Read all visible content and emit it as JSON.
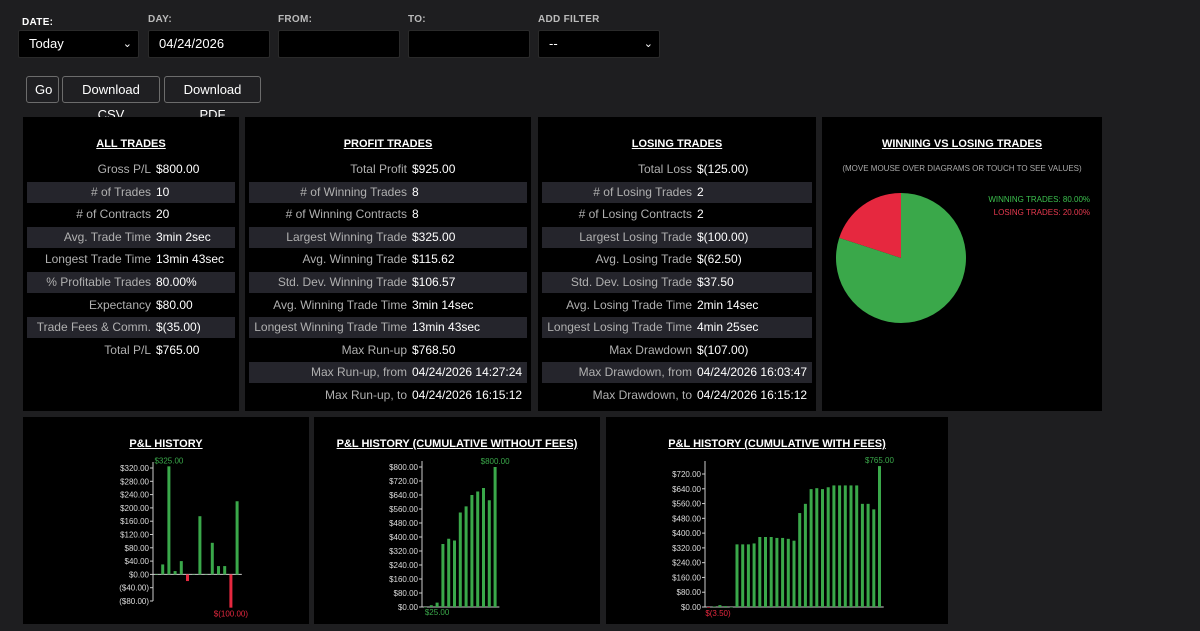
{
  "filters": {
    "date_label": "DATE:",
    "date_value": "Today",
    "day_label": "DAY:",
    "day_value": "04/24/2026",
    "from_label": "FROM:",
    "from_value": "",
    "to_label": "TO:",
    "to_value": "",
    "addfilter_label": "ADD FILTER",
    "addfilter_value": "--"
  },
  "buttons": {
    "go": "Go",
    "csv": "Download CSV",
    "pdf": "Download PDF"
  },
  "all_trades": {
    "title": "ALL TRADES",
    "rows": [
      {
        "label": "Gross P/L",
        "value": "$800.00"
      },
      {
        "label": "# of Trades",
        "value": "10"
      },
      {
        "label": "# of Contracts",
        "value": "20"
      },
      {
        "label": "Avg. Trade Time",
        "value": "3min 2sec"
      },
      {
        "label": "Longest Trade Time",
        "value": "13min 43sec"
      },
      {
        "label": "% Profitable Trades",
        "value": "80.00%"
      },
      {
        "label": "Expectancy",
        "value": "$80.00"
      },
      {
        "label": "Trade Fees & Comm.",
        "value": "$(35.00)"
      },
      {
        "label": "Total P/L",
        "value": "$765.00"
      }
    ]
  },
  "profit_trades": {
    "title": "PROFIT TRADES",
    "rows": [
      {
        "label": "Total Profit",
        "value": "$925.00"
      },
      {
        "label": "# of Winning Trades",
        "value": "8"
      },
      {
        "label": "# of Winning Contracts",
        "value": "8"
      },
      {
        "label": "Largest Winning Trade",
        "value": "$325.00"
      },
      {
        "label": "Avg. Winning Trade",
        "value": "$115.62"
      },
      {
        "label": "Std. Dev. Winning Trade",
        "value": "$106.57"
      },
      {
        "label": "Avg. Winning Trade Time",
        "value": "3min 14sec"
      },
      {
        "label": "Longest Winning Trade Time",
        "value": "13min 43sec"
      },
      {
        "label": "Max Run-up",
        "value": "$768.50"
      },
      {
        "label": "Max Run-up, from",
        "value": "04/24/2026 14:27:24"
      },
      {
        "label": "Max Run-up, to",
        "value": "04/24/2026 16:15:12"
      }
    ]
  },
  "losing_trades": {
    "title": "LOSING TRADES",
    "rows": [
      {
        "label": "Total Loss",
        "value": "$(125.00)"
      },
      {
        "label": "# of Losing Trades",
        "value": "2"
      },
      {
        "label": "# of Losing Contracts",
        "value": "2"
      },
      {
        "label": "Largest Losing Trade",
        "value": "$(100.00)"
      },
      {
        "label": "Avg. Losing Trade",
        "value": "$(62.50)"
      },
      {
        "label": "Std. Dev. Losing Trade",
        "value": "$37.50"
      },
      {
        "label": "Avg. Losing Trade Time",
        "value": "2min 14sec"
      },
      {
        "label": "Longest Losing Trade Time",
        "value": "4min 25sec"
      },
      {
        "label": "Max Drawdown",
        "value": "$(107.00)"
      },
      {
        "label": "Max Drawdown, from",
        "value": "04/24/2026 16:03:47"
      },
      {
        "label": "Max Drawdown, to",
        "value": "04/24/2026 16:15:12"
      }
    ]
  },
  "winloss": {
    "title": "WINNING VS LOSING TRADES",
    "subtitle": "(MOVE MOUSE OVER DIAGRAMS OR TOUCH TO SEE VALUES)",
    "win_label": "WINNING TRADES: 80.00%",
    "loss_label": "LOSING TRADES: 20.00%"
  },
  "colors": {
    "win": "#3aa84a",
    "loss": "#e6283f",
    "axis": "#cccccc"
  },
  "chart_data": [
    {
      "type": "pie",
      "title": "WINNING VS LOSING TRADES",
      "labels": [
        "WINNING TRADES: 80.00%",
        "LOSING TRADES: 20.00%"
      ],
      "values": [
        80,
        20
      ],
      "colors": [
        "#3aa84a",
        "#e6283f"
      ]
    },
    {
      "type": "bar",
      "title": "P&L HISTORY",
      "values": [
        0,
        30,
        325,
        10,
        40,
        -20,
        0,
        175,
        0,
        95,
        25,
        25,
        -100,
        220
      ],
      "ylim": [
        -80,
        320
      ],
      "yticks": [
        "$320.00",
        "$280.00",
        "$240.00",
        "$200.00",
        "$160.00",
        "$120.00",
        "$80.00",
        "$40.00",
        "$0.00",
        "($40.00)",
        "($80.00)"
      ],
      "annotations": [
        {
          "label": "$325.00",
          "bar": 2
        },
        {
          "label": "$(100.00)",
          "bar": 12
        }
      ]
    },
    {
      "type": "bar",
      "title": "P&L HISTORY (CUMULATIVE WITHOUT FEES)",
      "values": [
        0,
        10,
        25,
        360,
        390,
        380,
        540,
        575,
        640,
        660,
        680,
        610,
        800
      ],
      "ylim": [
        0,
        800
      ],
      "yticks": [
        "$800.00",
        "$720.00",
        "$640.00",
        "$560.00",
        "$480.00",
        "$400.00",
        "$320.00",
        "$240.00",
        "$160.00",
        "$80.00",
        "$0.00"
      ],
      "annotations": [
        {
          "label": "$800.00",
          "bar": 12
        },
        {
          "label": "$25.00",
          "bar": 2
        }
      ]
    },
    {
      "type": "bar",
      "title": "P&L HISTORY (CUMULATIVE WITH FEES)",
      "values": [
        -3.5,
        3,
        10,
        5,
        0,
        340,
        340,
        340,
        345,
        380,
        380,
        380,
        375,
        375,
        370,
        360,
        510,
        560,
        640,
        645,
        640,
        650,
        660,
        660,
        660,
        660,
        660,
        560,
        560,
        530,
        765
      ],
      "ylim": [
        0,
        760
      ],
      "yticks": [
        "$720.00",
        "$640.00",
        "$560.00",
        "$480.00",
        "$400.00",
        "$320.00",
        "$240.00",
        "$160.00",
        "$80.00",
        "$0.00"
      ],
      "annotations": [
        {
          "label": "$765.00",
          "bar": 30
        },
        {
          "label": "$(3.50)",
          "bar": 0
        }
      ]
    }
  ]
}
